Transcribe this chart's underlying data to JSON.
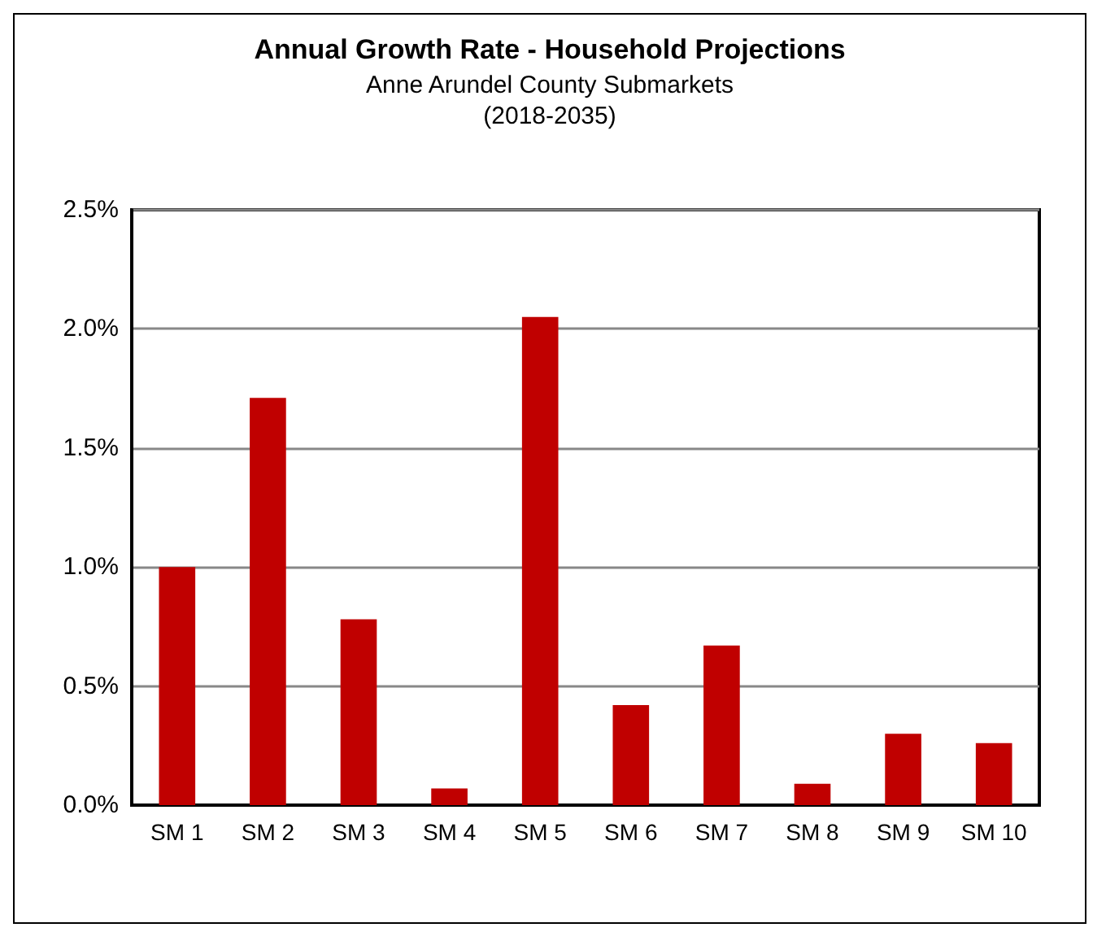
{
  "chart_data": {
    "type": "bar",
    "title": "Annual Growth Rate - Household Projections",
    "subtitle": "Anne Arundel County Submarkets\n(2018-2035)",
    "categories": [
      "SM 1",
      "SM 2",
      "SM 3",
      "SM 4",
      "SM 5",
      "SM 6",
      "SM 7",
      "SM 8",
      "SM 9",
      "SM 10"
    ],
    "values": [
      1.0,
      1.71,
      0.78,
      0.07,
      2.05,
      0.42,
      0.67,
      0.09,
      0.3,
      0.26
    ],
    "color": "#c00000",
    "ylim": [
      0,
      2.5
    ],
    "yticks": [
      {
        "value": 0,
        "label": "0.0%"
      },
      {
        "value": 0.5,
        "label": "0.5%"
      },
      {
        "value": 1,
        "label": "1.0%"
      },
      {
        "value": 1.5,
        "label": "1.5%"
      },
      {
        "value": 2,
        "label": "2.0%"
      },
      {
        "value": 2.5,
        "label": "2.5%"
      }
    ],
    "grid": "y"
  }
}
